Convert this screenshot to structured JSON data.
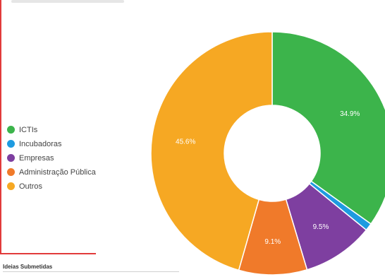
{
  "chart_data": {
    "type": "pie",
    "variant": "donut",
    "categories": [
      "ICTIs",
      "Incubadoras",
      "Empresas",
      "Administração Pública",
      "Outros"
    ],
    "values": [
      34.9,
      1.0,
      9.5,
      9.1,
      45.6
    ],
    "data_labels": [
      "34.9%",
      "",
      "9.5%",
      "9.1%",
      "45.6%"
    ],
    "colors": [
      "#3cb44b",
      "#1e9be0",
      "#7e3fa0",
      "#f07a2a",
      "#f6a823"
    ],
    "legend_position": "left"
  },
  "caption": "Ideias Submetidas"
}
